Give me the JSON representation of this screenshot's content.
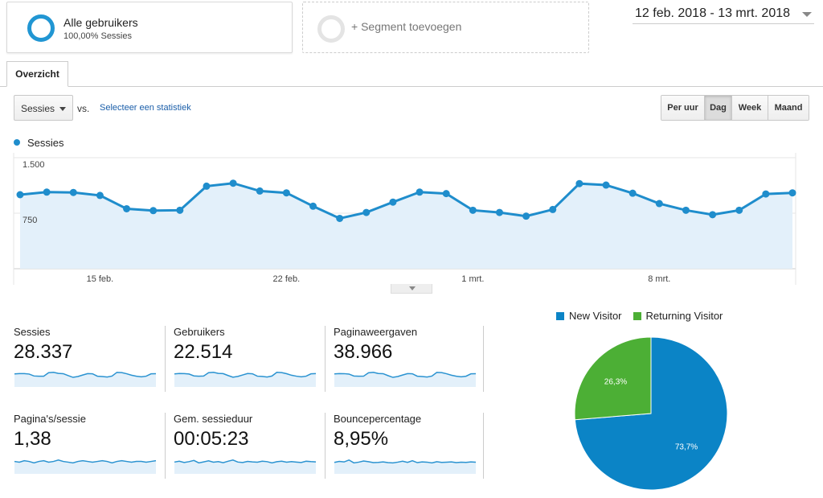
{
  "segments": {
    "active_title": "Alle gebruikers",
    "active_sub": "100,00% Sessies",
    "add_label": "+ Segment toevoegen"
  },
  "date_range": "12 feb. 2018 - 13 mrt. 2018",
  "tabs": [
    {
      "label": "Overzicht"
    }
  ],
  "controls": {
    "metric_select": "Sessies",
    "vs": "vs.",
    "select_stat": "Selecteer een statistiek",
    "time_buttons": [
      {
        "label": "Per uur",
        "active": false
      },
      {
        "label": "Dag",
        "active": true
      },
      {
        "label": "Week",
        "active": false
      },
      {
        "label": "Maand",
        "active": false
      }
    ]
  },
  "colors": {
    "accent": "#1f8dcc",
    "area_fill": "#e3f0fa",
    "new_visitor": "#0b84c6",
    "returning_visitor": "#4caf35"
  },
  "chart_data": [
    {
      "type": "area",
      "series": [
        {
          "name": "Sessies",
          "values": [
            1000,
            1035,
            1030,
            990,
            810,
            785,
            790,
            1115,
            1155,
            1050,
            1025,
            845,
            680,
            760,
            900,
            1035,
            1015,
            790,
            760,
            710,
            800,
            1150,
            1130,
            1020,
            880,
            790,
            730,
            790,
            1010,
            1025
          ]
        }
      ],
      "x_labels": [
        "15 feb.",
        "22 feb.",
        "1 mrt.",
        "8 mrt."
      ],
      "y_ticks": [
        "1.500",
        "750"
      ],
      "ylim": [
        0,
        1500
      ],
      "grid": true,
      "legend": "top-left"
    },
    {
      "type": "pie",
      "slices": [
        {
          "label": "New Visitor",
          "value": 73.7,
          "text": "73,7%"
        },
        {
          "label": "Returning Visitor",
          "value": 26.3,
          "text": "26,3%"
        }
      ],
      "legend": "top"
    }
  ],
  "metrics": [
    {
      "label": "Sessies",
      "value": "28.337",
      "spark": [
        1000,
        1035,
        1030,
        990,
        810,
        785,
        790,
        1115,
        1155,
        1050,
        1025,
        845,
        680,
        760,
        900,
        1035,
        1015,
        790,
        760,
        710,
        800,
        1150,
        1130,
        1020,
        880,
        790,
        730,
        790,
        1010,
        1025
      ]
    },
    {
      "label": "Gebruikers",
      "value": "22.514",
      "spark": [
        800,
        830,
        825,
        790,
        650,
        630,
        640,
        890,
        920,
        840,
        820,
        680,
        550,
        610,
        720,
        830,
        810,
        630,
        610,
        570,
        640,
        920,
        900,
        815,
        700,
        630,
        585,
        630,
        805,
        820
      ]
    },
    {
      "label": "Paginaweergaven",
      "value": "38.966",
      "spark": [
        1380,
        1420,
        1415,
        1360,
        1110,
        1080,
        1090,
        1530,
        1590,
        1440,
        1410,
        1160,
        935,
        1045,
        1240,
        1420,
        1395,
        1085,
        1045,
        975,
        1100,
        1580,
        1555,
        1400,
        1210,
        1085,
        1005,
        1085,
        1390,
        1410
      ]
    },
    {
      "label": "Pagina's/sessie",
      "value": "1,38",
      "spark": [
        1.38,
        1.37,
        1.39,
        1.38,
        1.36,
        1.38,
        1.39,
        1.37,
        1.38,
        1.4,
        1.38,
        1.37,
        1.36,
        1.38,
        1.39,
        1.38,
        1.37,
        1.38,
        1.39,
        1.38,
        1.36,
        1.38,
        1.39,
        1.38,
        1.37,
        1.38,
        1.38,
        1.37,
        1.38,
        1.39
      ]
    },
    {
      "label": "Gem. sessieduur",
      "value": "00:05:23",
      "spark": [
        320,
        330,
        315,
        325,
        340,
        310,
        322,
        335,
        318,
        326,
        312,
        330,
        345,
        320,
        315,
        328,
        322,
        318,
        330,
        325,
        310,
        324,
        330,
        318,
        326,
        320,
        315,
        330,
        325,
        322
      ]
    },
    {
      "label": "Bouncepercentage",
      "value": "8,95%",
      "spark": [
        8.8,
        9.2,
        9.0,
        9.8,
        8.6,
        8.9,
        9.4,
        9.1,
        8.7,
        8.8,
        9.0,
        8.7,
        8.6,
        8.9,
        9.3,
        8.8,
        9.5,
        8.7,
        9.0,
        8.9,
        8.6,
        9.1,
        8.8,
        8.9,
        9.0,
        8.7,
        8.9,
        8.8,
        9.0,
        8.9
      ]
    }
  ]
}
